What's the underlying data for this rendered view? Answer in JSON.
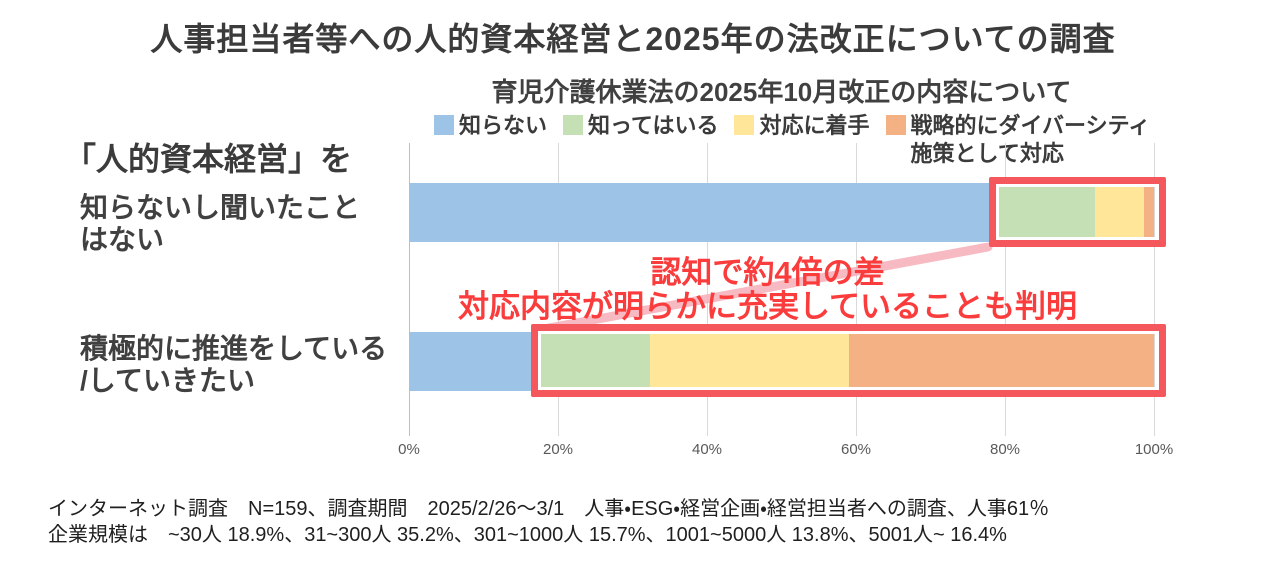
{
  "title": "人事担当者等への人的資本経営と2025年の法改正についての調査",
  "chart_data": {
    "type": "bar",
    "variant": "horizontal-stacked-100",
    "title": "育児介護休業法の2025年10月改正の内容について",
    "category_heading": "「人的資本経営」を",
    "categories": [
      "知らないし聞いたことはない",
      "積極的に推進をしている/していきたい"
    ],
    "category_labels_display": [
      "知らないし聞いたこと\nはない",
      "積極的に推進をしている\n/していきたい"
    ],
    "series": [
      {
        "name": "知らない",
        "legend_label": "知らない",
        "color": "#9DC3E6",
        "values": [
          79.0,
          16.6
        ]
      },
      {
        "name": "知ってはいる",
        "legend_label": "知ってはいる",
        "color": "#C5E0B4",
        "values": [
          13.1,
          15.7
        ]
      },
      {
        "name": "対応に着手",
        "legend_label": "対応に着手",
        "color": "#FFE699",
        "values": [
          6.6,
          26.7
        ]
      },
      {
        "name": "戦略的にダイバーシティ施策として対応",
        "legend_label": "戦略的にダイバーシティ\n施策として対応",
        "color": "#F4B183",
        "values": [
          1.3,
          41.0
        ]
      }
    ],
    "x_ticks": [
      "0%",
      "20%",
      "40%",
      "60%",
      "80%",
      "100%"
    ],
    "xlim": [
      0,
      100
    ],
    "grid": true,
    "legend_position": "top",
    "annotations": {
      "line1": "認知で約4倍の差",
      "line2": "対応内容が明らかに充実していることも判明",
      "text_color": "#FA3C3C"
    },
    "highlight_color": "#F4575C",
    "connector_color": "#F6AEB9"
  },
  "footer": {
    "line1": "インターネット調査　N=159、調査期間　2025/2/26～3/1　人事・ESG・経営企画・経営担当者への調査、人事61％",
    "line2": "企業規模は　~30人 18.9%、31~300人 35.2%、301~1000人 15.7%、1001~5000人 13.8%、5001人~ 16.4%"
  }
}
